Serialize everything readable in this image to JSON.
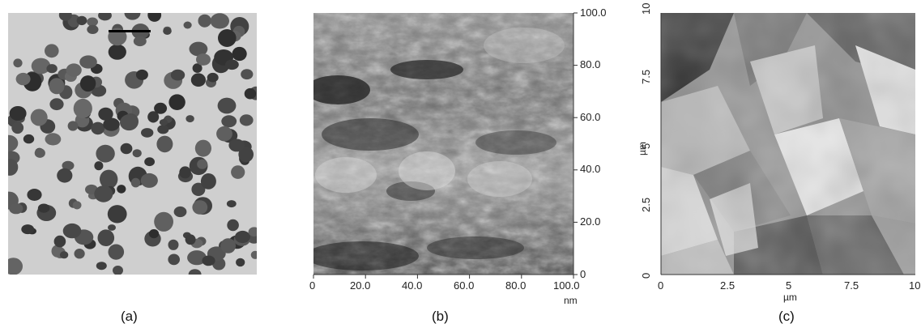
{
  "panels": [
    {
      "caption": "(a)"
    },
    {
      "caption": "(b)",
      "x_ticks": [
        "0",
        "20.0",
        "40.0",
        "60.0",
        "80.0",
        "100.0"
      ],
      "y_ticks": [
        "100.0",
        "80.0",
        "60.0",
        "40.0",
        "20.0",
        "0"
      ],
      "x_unit": "nm"
    },
    {
      "caption": "(c)",
      "x_ticks": [
        "0",
        "2.5",
        "5",
        "7.5",
        "10"
      ],
      "y_ticks": [
        "10",
        "7.5",
        "5",
        "2.5",
        "0"
      ],
      "x_unit": "µm",
      "y_unit": "µm"
    }
  ]
}
